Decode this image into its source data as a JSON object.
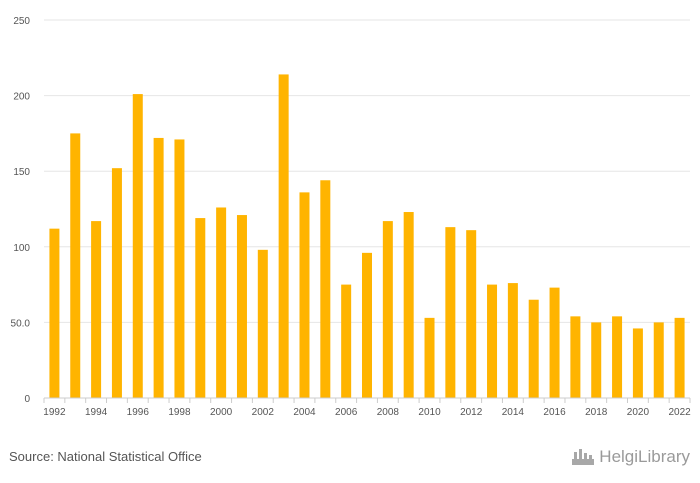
{
  "chart_data": {
    "type": "bar",
    "x": [
      1992,
      1993,
      1994,
      1995,
      1996,
      1997,
      1998,
      1999,
      2000,
      2001,
      2002,
      2003,
      2004,
      2005,
      2006,
      2007,
      2008,
      2009,
      2010,
      2011,
      2012,
      2013,
      2014,
      2015,
      2016,
      2017,
      2018,
      2019,
      2020,
      2021,
      2022
    ],
    "values": [
      112,
      175,
      117,
      152,
      201,
      172,
      171,
      119,
      126,
      121,
      98,
      214,
      136,
      144,
      75,
      96,
      117,
      123,
      53,
      113,
      111,
      75,
      76,
      65,
      73,
      54,
      50,
      54,
      46,
      50,
      53
    ],
    "x_tick_labels": [
      "1992",
      "1994",
      "1996",
      "1998",
      "2000",
      "2002",
      "2004",
      "2006",
      "2008",
      "2010",
      "2012",
      "2014",
      "2016",
      "2018",
      "2020",
      "2022"
    ],
    "y_ticks": [
      0,
      50,
      100,
      150,
      200,
      250
    ],
    "y_tick_labels": [
      "0",
      "50.0",
      "100",
      "150",
      "200",
      "250"
    ],
    "ylim": [
      0,
      250
    ],
    "grid": true,
    "bar_color": "#FFB400",
    "grid_color": "#e6e6e6",
    "axis_color": "#cccccc"
  },
  "footer": {
    "source": "Source: National Statistical Office",
    "brand": "HelgiLibrary",
    "brand_icon": "helgi-logo-icon"
  }
}
